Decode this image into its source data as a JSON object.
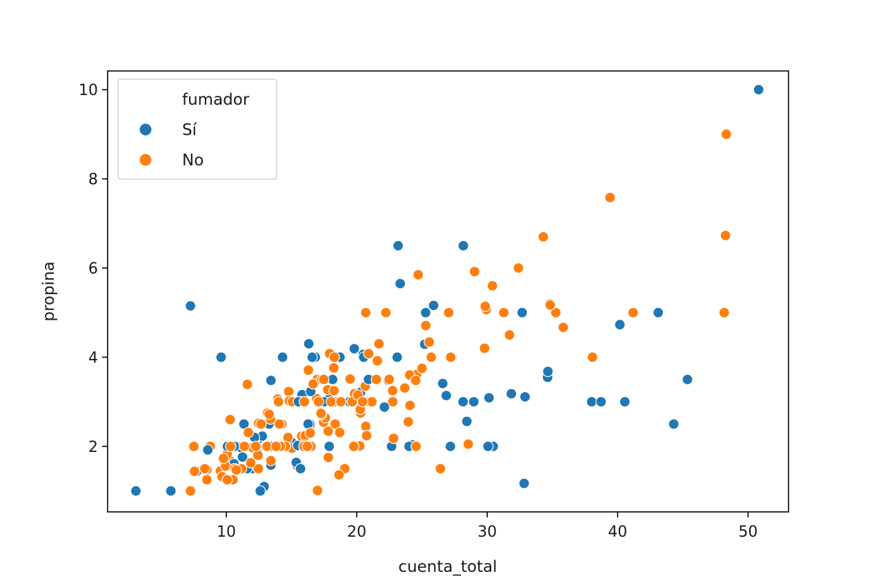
{
  "chart_data": {
    "type": "scatter",
    "title": "",
    "xlabel": "cuenta_total",
    "ylabel": "propina",
    "xlim": [
      0.9,
      53.1
    ],
    "ylim": [
      0.53,
      10.42
    ],
    "xticks": [
      10,
      20,
      30,
      40,
      50
    ],
    "yticks": [
      2,
      4,
      6,
      8,
      10
    ],
    "grid": false,
    "legend": {
      "title": "fumador",
      "placement": "top-left"
    },
    "series": [
      {
        "name": "Sí",
        "color": "#1f77b4",
        "points": [
          [
            38.01,
            3.0
          ],
          [
            11.24,
            1.76
          ],
          [
            20.29,
            3.21
          ],
          [
            13.81,
            2.0
          ],
          [
            11.02,
            1.98
          ],
          [
            18.29,
            3.76
          ],
          [
            3.07,
            1.0
          ],
          [
            15.01,
            2.09
          ],
          [
            26.86,
            3.14
          ],
          [
            25.28,
            5.0
          ],
          [
            17.92,
            3.08
          ],
          [
            19.44,
            3.0
          ],
          [
            32.68,
            5.0
          ],
          [
            28.97,
            3.0
          ],
          [
            5.75,
            1.0
          ],
          [
            16.32,
            4.3
          ],
          [
            40.17,
            4.73
          ],
          [
            27.28,
            4.0
          ],
          [
            12.03,
            1.5
          ],
          [
            21.01,
            3.0
          ],
          [
            11.35,
            2.5
          ],
          [
            15.38,
            3.0
          ],
          [
            44.3,
            2.5
          ],
          [
            22.42,
            3.48
          ],
          [
            15.36,
            1.64
          ],
          [
            20.49,
            4.06
          ],
          [
            25.21,
            4.29
          ],
          [
            14.31,
            4.0
          ],
          [
            16.0,
            2.0
          ],
          [
            17.51,
            3.0
          ],
          [
            10.59,
            1.61
          ],
          [
            10.63,
            2.0
          ],
          [
            50.81,
            10.0
          ],
          [
            15.81,
            3.16
          ],
          [
            7.25,
            5.15
          ],
          [
            31.85,
            3.18
          ],
          [
            16.82,
            4.0
          ],
          [
            32.9,
            3.11
          ],
          [
            17.89,
            2.0
          ],
          [
            14.48,
            2.0
          ],
          [
            9.6,
            4.0
          ],
          [
            34.63,
            3.55
          ],
          [
            34.65,
            3.68
          ],
          [
            23.33,
            5.65
          ],
          [
            45.35,
            3.5
          ],
          [
            23.17,
            6.5
          ],
          [
            40.55,
            3.0
          ],
          [
            20.9,
            3.5
          ],
          [
            30.46,
            2.0
          ],
          [
            18.15,
            3.5
          ],
          [
            23.1,
            4.0
          ],
          [
            15.69,
            1.5
          ],
          [
            19.81,
            4.19
          ],
          [
            28.44,
            2.56
          ],
          [
            15.48,
            2.02
          ],
          [
            16.58,
            4.0
          ],
          [
            10.34,
            2.0
          ],
          [
            43.11,
            5.0
          ],
          [
            13.0,
            2.0
          ],
          [
            13.51,
            2.0
          ],
          [
            18.71,
            4.0
          ],
          [
            12.74,
            2.01
          ],
          [
            13.0,
            2.0
          ],
          [
            16.4,
            2.5
          ],
          [
            20.53,
            4.0
          ],
          [
            16.47,
            3.23
          ],
          [
            26.59,
            3.41
          ],
          [
            38.73,
            3.0
          ],
          [
            24.27,
            2.03
          ],
          [
            12.76,
            2.23
          ],
          [
            30.06,
            2.0
          ],
          [
            25.89,
            5.16
          ],
          [
            13.27,
            2.5
          ],
          [
            28.17,
            6.5
          ],
          [
            12.9,
            1.1
          ],
          [
            28.15,
            3.0
          ],
          [
            11.59,
            1.5
          ],
          [
            7.74,
            1.44
          ],
          [
            30.14,
            3.09
          ],
          [
            12.16,
            2.2
          ],
          [
            13.42,
            3.48
          ],
          [
            8.58,
            1.92
          ],
          [
            13.42,
            1.58
          ],
          [
            16.27,
            2.5
          ],
          [
            10.09,
            2.0
          ],
          [
            22.12,
            2.88
          ],
          [
            24.01,
            2.0
          ],
          [
            15.69,
            3.0
          ],
          [
            15.53,
            3.0
          ],
          [
            12.6,
            1.0
          ],
          [
            32.83,
            1.17
          ],
          [
            27.18,
            2.0
          ],
          [
            22.67,
            2.0
          ]
        ]
      },
      {
        "name": "No",
        "color": "#ff7f0e",
        "points": [
          [
            16.99,
            1.01
          ],
          [
            10.34,
            1.66
          ],
          [
            21.01,
            3.5
          ],
          [
            23.68,
            3.31
          ],
          [
            24.59,
            3.61
          ],
          [
            25.29,
            4.71
          ],
          [
            8.77,
            2.0
          ],
          [
            26.88,
            3.12
          ],
          [
            15.04,
            1.96
          ],
          [
            14.78,
            3.23
          ],
          [
            10.27,
            1.71
          ],
          [
            35.26,
            5.0
          ],
          [
            15.42,
            1.57
          ],
          [
            18.43,
            3.0
          ],
          [
            14.83,
            3.02
          ],
          [
            21.58,
            3.92
          ],
          [
            10.33,
            1.67
          ],
          [
            16.29,
            3.71
          ],
          [
            16.97,
            3.5
          ],
          [
            20.65,
            3.35
          ],
          [
            17.92,
            4.08
          ],
          [
            20.29,
            2.75
          ],
          [
            15.77,
            2.23
          ],
          [
            39.42,
            7.58
          ],
          [
            19.82,
            3.18
          ],
          [
            17.81,
            2.34
          ],
          [
            13.37,
            2.0
          ],
          [
            12.69,
            2.0
          ],
          [
            21.7,
            4.3
          ],
          [
            19.65,
            3.0
          ],
          [
            9.55,
            1.45
          ],
          [
            18.35,
            2.5
          ],
          [
            15.06,
            3.0
          ],
          [
            20.69,
            2.45
          ],
          [
            17.78,
            3.27
          ],
          [
            24.06,
            3.6
          ],
          [
            16.31,
            2.0
          ],
          [
            16.93,
            3.07
          ],
          [
            18.69,
            2.31
          ],
          [
            31.27,
            5.0
          ],
          [
            16.04,
            2.24
          ],
          [
            17.46,
            2.54
          ],
          [
            13.94,
            3.06
          ],
          [
            9.68,
            1.32
          ],
          [
            30.4,
            5.6
          ],
          [
            18.29,
            3.0
          ],
          [
            22.23,
            5.0
          ],
          [
            32.4,
            6.0
          ],
          [
            28.55,
            2.05
          ],
          [
            18.04,
            3.0
          ],
          [
            12.54,
            2.5
          ],
          [
            10.29,
            2.6
          ],
          [
            34.81,
            5.2
          ],
          [
            9.94,
            1.56
          ],
          [
            25.56,
            4.34
          ],
          [
            19.49,
            3.51
          ],
          [
            26.41,
            1.5
          ],
          [
            48.27,
            6.73
          ],
          [
            17.59,
            2.64
          ],
          [
            20.08,
            3.15
          ],
          [
            16.45,
            2.47
          ],
          [
            20.23,
            2.01
          ],
          [
            12.02,
            1.97
          ],
          [
            17.07,
            3.0
          ],
          [
            14.73,
            2.2
          ],
          [
            10.51,
            1.25
          ],
          [
            27.2,
            4.0
          ],
          [
            22.76,
            3.0
          ],
          [
            17.29,
            2.71
          ],
          [
            16.66,
            3.4
          ],
          [
            10.07,
            1.83
          ],
          [
            15.98,
            2.03
          ],
          [
            34.83,
            5.17
          ],
          [
            13.03,
            2.0
          ],
          [
            18.28,
            4.0
          ],
          [
            24.71,
            5.85
          ],
          [
            21.16,
            3.0
          ],
          [
            22.49,
            3.5
          ],
          [
            22.75,
            3.25
          ],
          [
            12.46,
            1.5
          ],
          [
            20.92,
            4.08
          ],
          [
            18.24,
            3.76
          ],
          [
            14.0,
            3.0
          ],
          [
            7.25,
            1.0
          ],
          [
            38.07,
            4.0
          ],
          [
            23.95,
            2.55
          ],
          [
            25.71,
            4.0
          ],
          [
            17.31,
            3.5
          ],
          [
            29.93,
            5.07
          ],
          [
            10.65,
            1.5
          ],
          [
            12.43,
            1.8
          ],
          [
            24.08,
            2.92
          ],
          [
            11.69,
            2.31
          ],
          [
            13.42,
            1.68
          ],
          [
            14.26,
            2.5
          ],
          [
            15.95,
            2.0
          ],
          [
            12.48,
            2.52
          ],
          [
            29.8,
            4.2
          ],
          [
            8.52,
            1.48
          ],
          [
            14.52,
            2.0
          ],
          [
            11.38,
            2.0
          ],
          [
            22.82,
            2.18
          ],
          [
            19.08,
            1.5
          ],
          [
            20.27,
            2.83
          ],
          [
            11.17,
            1.5
          ],
          [
            12.26,
            2.0
          ],
          [
            18.26,
            3.25
          ],
          [
            8.51,
            1.25
          ],
          [
            10.33,
            2.0
          ],
          [
            14.15,
            2.0
          ],
          [
            13.16,
            2.75
          ],
          [
            17.47,
            3.5
          ],
          [
            34.3,
            6.7
          ],
          [
            41.19,
            5.0
          ],
          [
            27.05,
            5.0
          ],
          [
            16.43,
            2.3
          ],
          [
            8.35,
            1.5
          ],
          [
            18.64,
            1.36
          ],
          [
            11.87,
            1.63
          ],
          [
            9.78,
            1.73
          ],
          [
            7.51,
            2.0
          ],
          [
            14.07,
            2.5
          ],
          [
            13.13,
            2.0
          ],
          [
            17.26,
            2.74
          ],
          [
            24.55,
            2.0
          ],
          [
            19.77,
            2.0
          ],
          [
            29.85,
            5.14
          ],
          [
            48.17,
            5.0
          ],
          [
            25.0,
            3.75
          ],
          [
            13.39,
            2.61
          ],
          [
            16.49,
            2.0
          ],
          [
            21.5,
            3.5
          ],
          [
            12.66,
            2.5
          ],
          [
            16.21,
            2.0
          ],
          [
            13.81,
            2.0
          ],
          [
            24.52,
            3.48
          ],
          [
            20.76,
            2.24
          ],
          [
            31.71,
            4.5
          ],
          [
            20.69,
            5.0
          ],
          [
            7.56,
            1.44
          ],
          [
            48.33,
            9.0
          ],
          [
            15.98,
            3.0
          ],
          [
            20.45,
            3.0
          ],
          [
            13.28,
            2.72
          ],
          [
            11.61,
            3.39
          ],
          [
            10.77,
            1.47
          ],
          [
            10.07,
            1.25
          ],
          [
            35.83,
            4.67
          ],
          [
            29.03,
            5.92
          ],
          [
            17.82,
            1.75
          ],
          [
            18.78,
            3.0
          ]
        ]
      }
    ]
  }
}
